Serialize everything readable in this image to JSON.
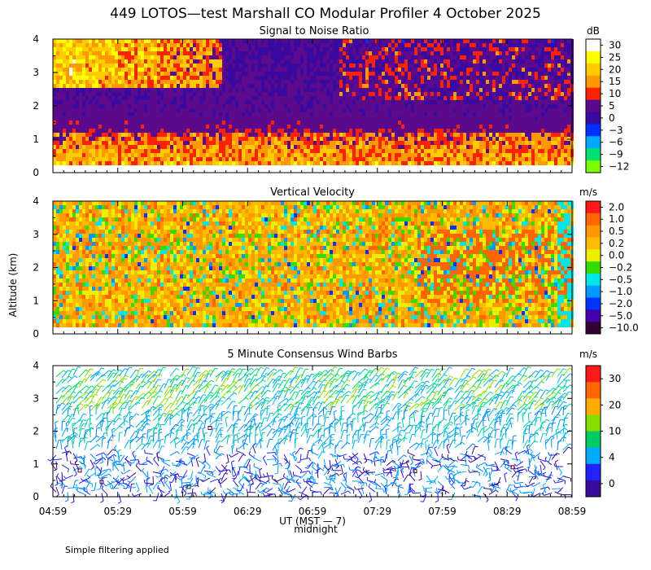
{
  "title": "449 LOTOS—test Marshall CO Modular Profiler  4 October 2025",
  "ylabel": "Altitude (km)",
  "xlabel": "UT (MST — 7)",
  "midnight_label": "midnight",
  "footnote": "Simple filtering applied",
  "colors": {
    "frame": "#000000",
    "white_gap": "#ffffff"
  },
  "chart_data": [
    {
      "type": "heatmap",
      "title": "Signal to Noise Ratio",
      "units": "dB",
      "ylim": [
        0,
        4
      ],
      "yticks": [
        0,
        1,
        2,
        3,
        4
      ],
      "x_time_range": [
        "04:59",
        "08:59"
      ],
      "colorbar": {
        "labels": [
          "30",
          "25",
          "20",
          "15",
          "10",
          "5",
          "0",
          "−3",
          "−6",
          "−9",
          "−12"
        ],
        "colors": [
          "#ffffff",
          "#ffff00",
          "#ffcc00",
          "#ff9900",
          "#ff2200",
          "#5a0a8a",
          "#3a0aa0",
          "#0030ff",
          "#00a8ff",
          "#00e070",
          "#7cfc00"
        ]
      }
    },
    {
      "type": "heatmap",
      "title": "Vertical Velocity",
      "units": "m/s",
      "ylim": [
        0,
        4
      ],
      "yticks": [
        0,
        1,
        2,
        3,
        4
      ],
      "x_time_range": [
        "04:59",
        "08:59"
      ],
      "colorbar": {
        "labels": [
          "2.0",
          "1.0",
          "0.5",
          "0.2",
          "0.0",
          "−0.2",
          "−0.5",
          "−1.0",
          "−2.0",
          "−5.0",
          "−10.0"
        ],
        "colors": [
          "#ff1a1a",
          "#ff6600",
          "#ff9900",
          "#ffbb00",
          "#eeee00",
          "#33dd00",
          "#00e5e5",
          "#0099ff",
          "#0033ff",
          "#4400aa",
          "#330033"
        ]
      }
    },
    {
      "type": "wind_barbs",
      "title": "5 Minute Consensus Wind Barbs",
      "units": "m/s",
      "ylim": [
        0,
        4
      ],
      "yticks": [
        0,
        1,
        2,
        3,
        4
      ],
      "x_time_range": [
        "04:59",
        "08:59"
      ],
      "colorbar": {
        "labels": [
          "30",
          "20",
          "10",
          "4",
          "0"
        ],
        "colors": [
          "#ff1a1a",
          "#ff6600",
          "#ffaa00",
          "#88dd00",
          "#00cc66",
          "#00aaff",
          "#2222ff",
          "#3a0a9a"
        ]
      }
    }
  ],
  "xticks": [
    "04:59",
    "05:29",
    "05:59",
    "06:29",
    "06:59",
    "07:29",
    "07:59",
    "08:29",
    "08:59"
  ]
}
